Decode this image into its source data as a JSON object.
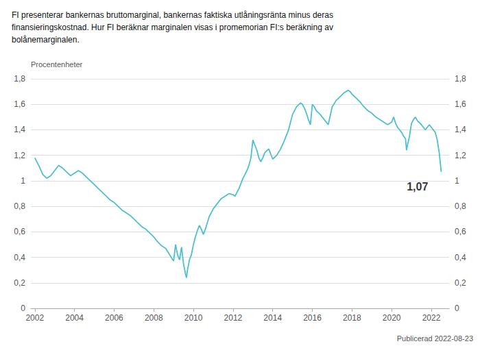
{
  "chart_data": {
    "type": "line",
    "title": "FI presenterar bankernas bruttomarginal, bankernas faktiska utlåningsränta minus deras\nfinansieringskostnad. Hur FI beräknar marginalen visas i promemorian FI:s beräkning av\nbolånemarginalen.",
    "ylabel": "Procentenheter",
    "annotations": [
      {
        "text": "1,07",
        "x": 2021.3,
        "y": 0.91
      },
      {
        "text": "Publicerad 2022-08-23"
      }
    ],
    "color": "#4dbfcf",
    "grid": true,
    "xlim": [
      2001.8,
      2022.9
    ],
    "xticks": [
      2002,
      2004,
      2006,
      2008,
      2010,
      2012,
      2014,
      2016,
      2018,
      2020,
      2022
    ],
    "ylim": [
      0,
      1.8
    ],
    "yticks": [
      0,
      {
        "value": 0.2,
        "label": "0,2"
      },
      {
        "value": 0.4,
        "label": "0,4"
      },
      {
        "value": 0.6,
        "label": "0,6"
      },
      {
        "value": 0.8,
        "label": "0,8"
      },
      1.0,
      {
        "value": 1.2,
        "label": "1,2"
      },
      {
        "value": 1.4,
        "label": "1,4"
      },
      {
        "value": 1.6,
        "label": "1,6"
      },
      {
        "value": 1.8,
        "label": "1,8"
      }
    ],
    "y2lim": [
      0,
      1.8
    ],
    "y2ticks": [
      0,
      {
        "value": 0.2,
        "label": "0,2"
      },
      {
        "value": 0.4,
        "label": "0,4"
      },
      {
        "value": 0.6,
        "label": "0,6"
      },
      {
        "value": 0.8,
        "label": "0,8"
      },
      1.0,
      {
        "value": 1.2,
        "label": "1,2"
      },
      {
        "value": 1.4,
        "label": "1,4"
      },
      {
        "value": 1.6,
        "label": "1,6"
      },
      {
        "value": 1.8,
        "label": "1,8"
      }
    ],
    "x": [
      2002.0,
      2002.2,
      2002.4,
      2002.6,
      2002.8,
      2003.0,
      2003.2,
      2003.4,
      2003.6,
      2003.8,
      2004.0,
      2004.2,
      2004.4,
      2004.6,
      2004.8,
      2005.0,
      2005.2,
      2005.4,
      2005.6,
      2005.8,
      2006.0,
      2006.2,
      2006.4,
      2006.6,
      2006.8,
      2007.0,
      2007.2,
      2007.4,
      2007.6,
      2007.8,
      2008.0,
      2008.2,
      2008.4,
      2008.6,
      2008.8,
      2009.0,
      2009.1,
      2009.2,
      2009.3,
      2009.4,
      2009.5,
      2009.6,
      2009.65,
      2009.7,
      2009.8,
      2009.9,
      2010.0,
      2010.1,
      2010.2,
      2010.3,
      2010.4,
      2010.5,
      2010.6,
      2010.7,
      2010.8,
      2011.0,
      2011.2,
      2011.4,
      2011.6,
      2011.8,
      2012.0,
      2012.1,
      2012.2,
      2012.3,
      2012.4,
      2012.5,
      2012.6,
      2012.7,
      2012.8,
      2012.9,
      2013.0,
      2013.1,
      2013.2,
      2013.3,
      2013.4,
      2013.5,
      2013.6,
      2013.8,
      2014.0,
      2014.2,
      2014.4,
      2014.6,
      2014.8,
      2015.0,
      2015.2,
      2015.4,
      2015.5,
      2015.6,
      2015.7,
      2015.8,
      2015.9,
      2016.0,
      2016.1,
      2016.2,
      2016.4,
      2016.6,
      2016.8,
      2017.0,
      2017.2,
      2017.4,
      2017.6,
      2017.8,
      2017.9,
      2018.0,
      2018.2,
      2018.4,
      2018.6,
      2018.8,
      2019.0,
      2019.2,
      2019.4,
      2019.6,
      2019.8,
      2020.0,
      2020.1,
      2020.2,
      2020.3,
      2020.4,
      2020.5,
      2020.6,
      2020.7,
      2020.75,
      2020.8,
      2020.9,
      2021.0,
      2021.1,
      2021.2,
      2021.3,
      2021.5,
      2021.6,
      2021.7,
      2021.8,
      2021.9,
      2022.0,
      2022.1,
      2022.2,
      2022.3,
      2022.4,
      2022.5
    ],
    "values": [
      1.18,
      1.12,
      1.05,
      1.02,
      1.04,
      1.08,
      1.12,
      1.1,
      1.07,
      1.04,
      1.06,
      1.08,
      1.06,
      1.03,
      1.0,
      0.97,
      0.94,
      0.91,
      0.88,
      0.85,
      0.83,
      0.8,
      0.77,
      0.75,
      0.73,
      0.7,
      0.67,
      0.64,
      0.62,
      0.59,
      0.56,
      0.52,
      0.49,
      0.47,
      0.42,
      0.37,
      0.5,
      0.42,
      0.38,
      0.48,
      0.35,
      0.27,
      0.24,
      0.3,
      0.38,
      0.42,
      0.5,
      0.56,
      0.61,
      0.65,
      0.62,
      0.58,
      0.62,
      0.67,
      0.72,
      0.78,
      0.82,
      0.86,
      0.88,
      0.9,
      0.89,
      0.88,
      0.91,
      0.94,
      0.98,
      1.02,
      1.05,
      1.08,
      1.12,
      1.18,
      1.32,
      1.28,
      1.24,
      1.18,
      1.15,
      1.18,
      1.22,
      1.25,
      1.17,
      1.2,
      1.25,
      1.32,
      1.4,
      1.52,
      1.58,
      1.61,
      1.6,
      1.57,
      1.53,
      1.48,
      1.44,
      1.6,
      1.58,
      1.55,
      1.52,
      1.48,
      1.44,
      1.58,
      1.63,
      1.66,
      1.69,
      1.71,
      1.7,
      1.68,
      1.65,
      1.62,
      1.58,
      1.55,
      1.53,
      1.5,
      1.48,
      1.46,
      1.44,
      1.46,
      1.5,
      1.45,
      1.42,
      1.4,
      1.38,
      1.35,
      1.33,
      1.24,
      1.28,
      1.35,
      1.45,
      1.48,
      1.5,
      1.47,
      1.44,
      1.42,
      1.4,
      1.42,
      1.44,
      1.42,
      1.4,
      1.38,
      1.32,
      1.22,
      1.07
    ]
  }
}
